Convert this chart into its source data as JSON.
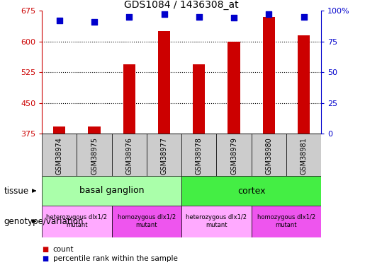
{
  "title": "GDS1084 / 1436308_at",
  "samples": [
    "GSM38974",
    "GSM38975",
    "GSM38976",
    "GSM38977",
    "GSM38978",
    "GSM38979",
    "GSM38980",
    "GSM38981"
  ],
  "counts": [
    393,
    392,
    545,
    625,
    545,
    600,
    660,
    615
  ],
  "percentiles": [
    92,
    91,
    95,
    97,
    95,
    94,
    97,
    95
  ],
  "ylim_left": [
    375,
    675
  ],
  "ylim_right": [
    0,
    100
  ],
  "yticks_left": [
    375,
    450,
    525,
    600,
    675
  ],
  "yticks_right": [
    0,
    25,
    50,
    75,
    100
  ],
  "ytick_labels_right": [
    "0",
    "25",
    "50",
    "75",
    "100%"
  ],
  "bar_color": "#cc0000",
  "dot_color": "#0000cc",
  "tissue_row": [
    {
      "label": "basal ganglion",
      "start": 0,
      "end": 4,
      "color": "#aaffaa"
    },
    {
      "label": "cortex",
      "start": 4,
      "end": 8,
      "color": "#44ee44"
    }
  ],
  "genotype_row": [
    {
      "label": "heterozygous dlx1/2\nmutant",
      "start": 0,
      "end": 2,
      "color": "#ffaaff"
    },
    {
      "label": "homozygous dlx1/2\nmutant",
      "start": 2,
      "end": 4,
      "color": "#ee55ee"
    },
    {
      "label": "heterozygous dlx1/2\nmutant",
      "start": 4,
      "end": 6,
      "color": "#ffaaff"
    },
    {
      "label": "homozygous dlx1/2\nmutant",
      "start": 6,
      "end": 8,
      "color": "#ee55ee"
    }
  ],
  "legend_count_color": "#cc0000",
  "legend_percentile_color": "#0000cc",
  "tissue_label": "tissue",
  "genotype_label": "genotype/variation",
  "count_label": "count",
  "percentile_label": "percentile rank within the sample",
  "bar_width": 0.35,
  "dot_size": 40,
  "sample_box_color": "#cccccc"
}
